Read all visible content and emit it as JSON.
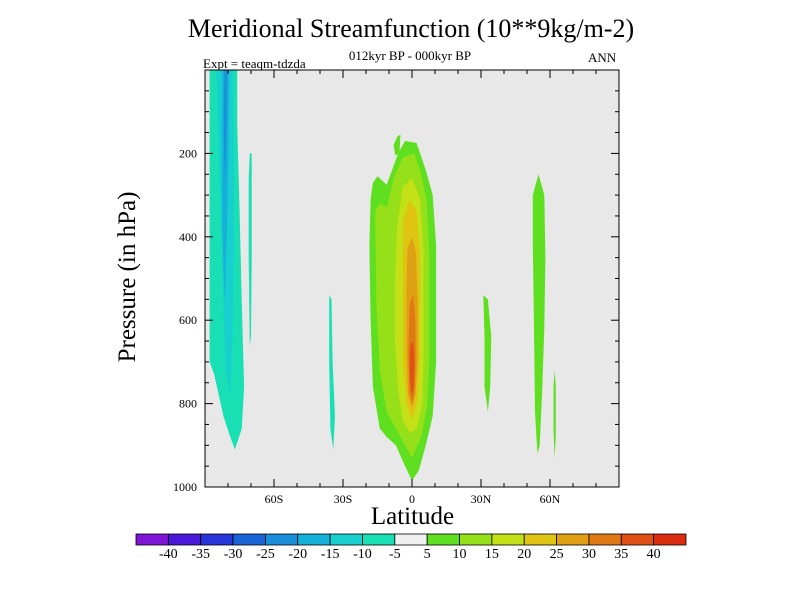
{
  "chart_data": {
    "type": "heatmap",
    "title": "Meridional Streamfunction (10**9kg/m-2)",
    "subtitle": "012kyr BP - 000kyr BP",
    "experiment": "Expt = teaqm-tdzda",
    "season": "ANN",
    "xlabel": "Latitude",
    "ylabel": "Pressure (in hPa)",
    "xlim": [
      -90,
      90
    ],
    "ylim": [
      1000,
      0
    ],
    "x_ticks": [
      {
        "value": -60,
        "label": "60S"
      },
      {
        "value": -30,
        "label": "30S"
      },
      {
        "value": 0,
        "label": "0"
      },
      {
        "value": 30,
        "label": "30N"
      },
      {
        "value": 60,
        "label": "60N"
      }
    ],
    "y_ticks": [
      {
        "value": 200,
        "label": "200"
      },
      {
        "value": 400,
        "label": "400"
      },
      {
        "value": 600,
        "label": "600"
      },
      {
        "value": 800,
        "label": "800"
      },
      {
        "value": 1000,
        "label": "1000"
      }
    ],
    "background_color": "#e8e8e8",
    "colorbar": {
      "levels": [
        "-40",
        "-35",
        "-30",
        "-25",
        "-20",
        "-15",
        "-10",
        "-5",
        "5",
        "10",
        "15",
        "20",
        "25",
        "30",
        "35",
        "40"
      ],
      "colors": [
        "#7f16d6",
        "#4a18d8",
        "#2835d8",
        "#1c63d8",
        "#1a8fd9",
        "#16b1d8",
        "#18cfd0",
        "#18e0b4",
        "#f0f0f0",
        "#5ee020",
        "#96e01a",
        "#c4e016",
        "#e0c414",
        "#e0a014",
        "#e07814",
        "#e05014",
        "#dc2c10"
      ]
    },
    "regions": [
      {
        "name": "sh-polar-negative-region",
        "color": "#18e0b4",
        "points": [
          [
            -88,
            0
          ],
          [
            -76,
            0
          ],
          [
            -76,
            130
          ],
          [
            -75,
            330
          ],
          [
            -74,
            560
          ],
          [
            -73,
            760
          ],
          [
            -74,
            860
          ],
          [
            -77,
            910
          ],
          [
            -79,
            880
          ],
          [
            -82,
            830
          ],
          [
            -86,
            730
          ],
          [
            -88,
            700
          ]
        ]
      },
      {
        "name": "sh-polar-core-negative",
        "color": "#18cfd0",
        "points": [
          [
            -85,
            0
          ],
          [
            -78,
            0
          ],
          [
            -77.5,
            200
          ],
          [
            -77.5,
            420
          ],
          [
            -78,
            620
          ],
          [
            -79,
            780
          ],
          [
            -81,
            720
          ],
          [
            -82,
            560
          ],
          [
            -83,
            380
          ],
          [
            -84,
            180
          ]
        ]
      },
      {
        "name": "sh-polar-inner-core",
        "color": "#16b1d8",
        "points": [
          [
            -82.5,
            0
          ],
          [
            -79.5,
            0
          ],
          [
            -79.8,
            200
          ],
          [
            -80.5,
            400
          ],
          [
            -81.5,
            560
          ],
          [
            -82.5,
            380
          ],
          [
            -82.7,
            180
          ]
        ]
      },
      {
        "name": "sh-polar-deep-core",
        "color": "#1a8fd9",
        "points": [
          [
            -81.6,
            0
          ],
          [
            -80.3,
            0
          ],
          [
            -80.7,
            160
          ],
          [
            -81.3,
            280
          ],
          [
            -81.8,
            160
          ]
        ]
      },
      {
        "name": "sh-midlat-negative-strip",
        "color": "#18e0b4",
        "points": [
          [
            -70.5,
            200
          ],
          [
            -69.7,
            200
          ],
          [
            -69.7,
            450
          ],
          [
            -70,
            640
          ],
          [
            -70.5,
            660
          ],
          [
            -71,
            450
          ],
          [
            -71,
            260
          ]
        ]
      },
      {
        "name": "sh-subtropic-negative-strip",
        "color": "#18e0b4",
        "points": [
          [
            -36,
            540
          ],
          [
            -35,
            550
          ],
          [
            -34.5,
            700
          ],
          [
            -33.5,
            830
          ],
          [
            -34.2,
            910
          ],
          [
            -35.5,
            860
          ],
          [
            -36,
            700
          ]
        ]
      },
      {
        "name": "tropical-uplift-patch",
        "color": "#5ee020",
        "points": [
          [
            -6.5,
            160
          ],
          [
            -5,
            155
          ],
          [
            -5.5,
            200
          ],
          [
            -7.2,
            205
          ],
          [
            -8,
            180
          ]
        ]
      },
      {
        "name": "tropical-positive-outer",
        "color": "#5ee020",
        "points": [
          [
            -18,
            310
          ],
          [
            -17,
            270
          ],
          [
            -15,
            255
          ],
          [
            -11,
            275
          ],
          [
            -6,
            200
          ],
          [
            -3,
            170
          ],
          [
            2,
            175
          ],
          [
            6,
            240
          ],
          [
            9,
            300
          ],
          [
            10.5,
            420
          ],
          [
            10.5,
            700
          ],
          [
            9,
            830
          ],
          [
            6,
            900
          ],
          [
            3,
            960
          ],
          [
            0,
            985
          ],
          [
            -3,
            950
          ],
          [
            -7,
            900
          ],
          [
            -11,
            880
          ],
          [
            -14,
            860
          ],
          [
            -17,
            760
          ],
          [
            -18,
            600
          ],
          [
            -18.5,
            420
          ]
        ]
      },
      {
        "name": "tropical-positive-10",
        "color": "#96e01a",
        "points": [
          [
            -16,
            340
          ],
          [
            -14,
            320
          ],
          [
            -11,
            330
          ],
          [
            -8,
            260
          ],
          [
            -4,
            210
          ],
          [
            1,
            200
          ],
          [
            4,
            250
          ],
          [
            6.5,
            320
          ],
          [
            7.5,
            450
          ],
          [
            7.5,
            700
          ],
          [
            6.5,
            810
          ],
          [
            4,
            880
          ],
          [
            0,
            930
          ],
          [
            -3,
            900
          ],
          [
            -7,
            860
          ],
          [
            -11,
            820
          ],
          [
            -14,
            720
          ],
          [
            -15.5,
            560
          ]
        ]
      },
      {
        "name": "tropical-positive-15",
        "color": "#c4e016",
        "points": [
          [
            -7.5,
            520
          ],
          [
            -6.5,
            380
          ],
          [
            -4,
            280
          ],
          [
            0,
            260
          ],
          [
            3.5,
            310
          ],
          [
            5,
            440
          ],
          [
            5,
            680
          ],
          [
            4.5,
            800
          ],
          [
            2,
            860
          ],
          [
            -1,
            870
          ],
          [
            -4,
            840
          ],
          [
            -6,
            770
          ],
          [
            -7.5,
            640
          ]
        ]
      },
      {
        "name": "tropical-positive-20",
        "color": "#e0c414",
        "points": [
          [
            -4,
            360
          ],
          [
            -1,
            310
          ],
          [
            2,
            340
          ],
          [
            3.5,
            440
          ],
          [
            3.5,
            680
          ],
          [
            2.5,
            790
          ],
          [
            0,
            840
          ],
          [
            -2.5,
            800
          ],
          [
            -4,
            700
          ]
        ]
      },
      {
        "name": "tropical-positive-25",
        "color": "#e0a014",
        "points": [
          [
            -2,
            430
          ],
          [
            0,
            400
          ],
          [
            1.8,
            440
          ],
          [
            2.5,
            560
          ],
          [
            2.5,
            700
          ],
          [
            1.5,
            780
          ],
          [
            0,
            810
          ],
          [
            -1.8,
            780
          ],
          [
            -2.5,
            680
          ],
          [
            -2.5,
            540
          ]
        ]
      },
      {
        "name": "tropical-positive-30",
        "color": "#e07814",
        "points": [
          [
            -1,
            560
          ],
          [
            0.5,
            540
          ],
          [
            1.5,
            600
          ],
          [
            1.6,
            720
          ],
          [
            1,
            780
          ],
          [
            0,
            800
          ],
          [
            -1.2,
            770
          ],
          [
            -1.6,
            680
          ]
        ]
      },
      {
        "name": "tropical-positive-35",
        "color": "#e05014",
        "points": [
          [
            -0.6,
            660
          ],
          [
            0.5,
            650
          ],
          [
            1,
            700
          ],
          [
            0.7,
            760
          ],
          [
            0,
            780
          ],
          [
            -0.8,
            750
          ],
          [
            -1,
            700
          ]
        ]
      },
      {
        "name": "nh-subtropic-positive-strip",
        "color": "#5ee020",
        "points": [
          [
            31,
            540
          ],
          [
            33,
            550
          ],
          [
            34.5,
            640
          ],
          [
            34,
            760
          ],
          [
            33,
            820
          ],
          [
            31.5,
            760
          ],
          [
            31.5,
            640
          ]
        ]
      },
      {
        "name": "nh-midlat-positive-strip",
        "color": "#5ee020",
        "points": [
          [
            52.5,
            300
          ],
          [
            55,
            250
          ],
          [
            57.5,
            300
          ],
          [
            58,
            450
          ],
          [
            57.5,
            620
          ],
          [
            56.5,
            780
          ],
          [
            55.5,
            900
          ],
          [
            54.5,
            920
          ],
          [
            53.5,
            820
          ],
          [
            53,
            600
          ],
          [
            52.5,
            420
          ]
        ]
      },
      {
        "name": "nh-midlat-positive-tail",
        "color": "#5ee020",
        "points": [
          [
            62,
            720
          ],
          [
            62.5,
            760
          ],
          [
            62.5,
            880
          ],
          [
            62,
            930
          ],
          [
            61.5,
            860
          ],
          [
            61.5,
            760
          ]
        ]
      }
    ]
  }
}
